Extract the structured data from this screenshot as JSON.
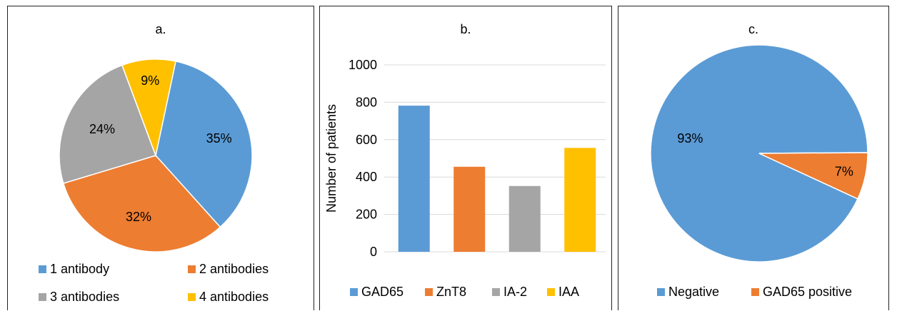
{
  "chart_data": [
    {
      "type": "pie",
      "title": "a.",
      "categories": [
        "1 antibody",
        "2 antibodies",
        "3 antibodies",
        "4 antibodies"
      ],
      "values": [
        35,
        32,
        24,
        9
      ],
      "labels": [
        "35%",
        "32%",
        "24%",
        "9%"
      ],
      "colors": [
        "#5b9bd5",
        "#ed7d31",
        "#a5a5a5",
        "#ffc000"
      ],
      "legend": "bottom"
    },
    {
      "type": "bar",
      "title": "b.",
      "categories": [
        "GAD65",
        "ZnT8",
        "IA-2",
        "IAA"
      ],
      "values": [
        782,
        455,
        352,
        556
      ],
      "colors": [
        "#5b9bd5",
        "#ed7d31",
        "#a5a5a5",
        "#ffc000"
      ],
      "ylabel": "Number of patients",
      "xlabel": "",
      "ylim": [
        0,
        1000
      ],
      "yticks": [
        "0",
        "200",
        "400",
        "600",
        "800",
        "1000"
      ],
      "grid": true,
      "legend": "bottom"
    },
    {
      "type": "pie",
      "title": "c.",
      "categories": [
        "Negative",
        "GAD65 positive"
      ],
      "values": [
        93,
        7
      ],
      "labels": [
        "93%",
        "7%"
      ],
      "colors": [
        "#5b9bd5",
        "#ed7d31"
      ],
      "legend": "bottom"
    }
  ]
}
